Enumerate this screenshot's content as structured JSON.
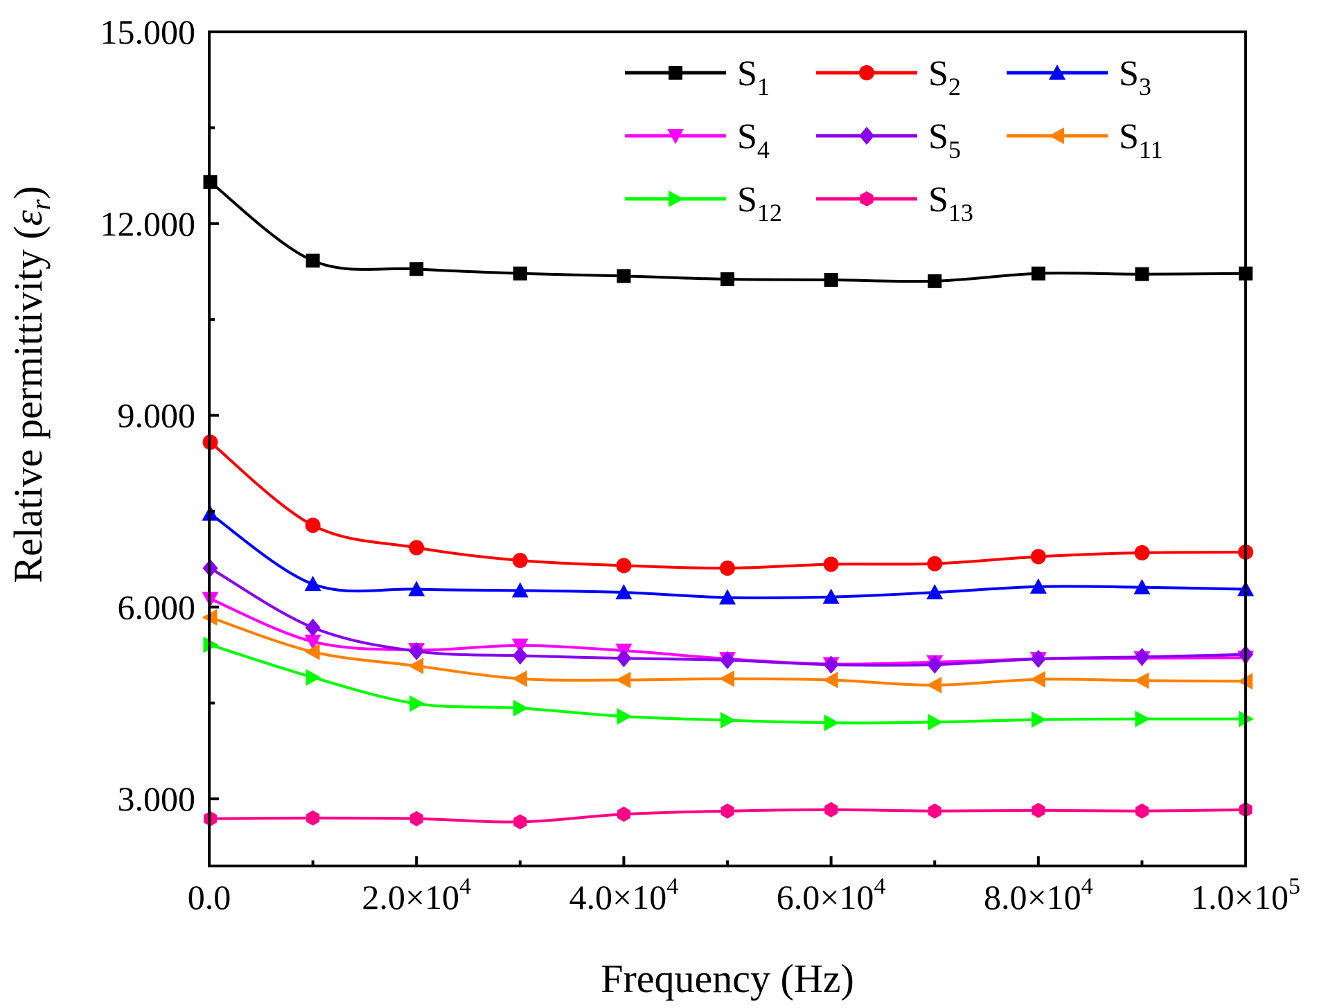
{
  "chart_data": {
    "type": "line",
    "title": "",
    "xlabel": "Frequency (Hz)",
    "ylabel_main": "Relative permittivity (",
    "ylabel_symbol": "ε",
    "ylabel_sub": "r",
    "ylabel_close": ")",
    "xlim": [
      0,
      100000
    ],
    "ylim": [
      1950,
      15000
    ],
    "x_ticks": [
      {
        "value": 0,
        "mantissa": "0.0",
        "exp": ""
      },
      {
        "value": 20000,
        "mantissa": "2.0×10",
        "exp": "4"
      },
      {
        "value": 40000,
        "mantissa": "4.0×10",
        "exp": "4"
      },
      {
        "value": 60000,
        "mantissa": "6.0×10",
        "exp": "4"
      },
      {
        "value": 80000,
        "mantissa": "8.0×10",
        "exp": "4"
      },
      {
        "value": 100000,
        "mantissa": "1.0×10",
        "exp": "5"
      }
    ],
    "y_ticks": [
      {
        "value": 3000,
        "label": "3.000"
      },
      {
        "value": 6000,
        "label": "6.000"
      },
      {
        "value": 9000,
        "label": "9.000"
      },
      {
        "value": 12000,
        "label": "12.000"
      },
      {
        "value": 15000,
        "label": "15.000"
      }
    ],
    "legend_position": "top-right",
    "x": [
      100,
      10000,
      20000,
      30000,
      40000,
      50000,
      60000,
      70000,
      80000,
      90000,
      100000
    ],
    "series": [
      {
        "name": "S",
        "sub": "1",
        "color": "#000000",
        "marker": "square",
        "values": [
          12650,
          11420,
          11290,
          11220,
          11180,
          11130,
          11120,
          11100,
          11220,
          11210,
          11220
        ]
      },
      {
        "name": "S",
        "sub": "2",
        "color": "#ff0000",
        "marker": "circle",
        "values": [
          8580,
          7280,
          6930,
          6730,
          6650,
          6610,
          6670,
          6680,
          6790,
          6850,
          6860
        ]
      },
      {
        "name": "S",
        "sub": "3",
        "color": "#0000ff",
        "marker": "triangle-up",
        "values": [
          7460,
          6360,
          6280,
          6260,
          6230,
          6150,
          6160,
          6230,
          6320,
          6310,
          6280
        ]
      },
      {
        "name": "S",
        "sub": "4",
        "color": "#ff00ff",
        "marker": "triangle-down",
        "values": [
          6130,
          5460,
          5330,
          5400,
          5320,
          5190,
          5110,
          5140,
          5190,
          5200,
          5210
        ]
      },
      {
        "name": "S",
        "sub": "5",
        "color": "#8800ee",
        "marker": "diamond",
        "values": [
          6610,
          5680,
          5310,
          5240,
          5200,
          5170,
          5100,
          5100,
          5190,
          5220,
          5260
        ]
      },
      {
        "name": "S",
        "sub": "11",
        "color": "#ff8000",
        "marker": "triangle-left",
        "values": [
          5840,
          5300,
          5080,
          4880,
          4860,
          4880,
          4860,
          4780,
          4870,
          4850,
          4840
        ]
      },
      {
        "name": "S",
        "sub": "12",
        "color": "#00ff00",
        "marker": "triangle-right",
        "values": [
          5410,
          4900,
          4490,
          4420,
          4290,
          4230,
          4190,
          4200,
          4240,
          4250,
          4250
        ]
      },
      {
        "name": "S",
        "sub": "13",
        "color": "#ff0088",
        "marker": "hexagon",
        "values": [
          2690,
          2700,
          2690,
          2640,
          2760,
          2810,
          2830,
          2810,
          2820,
          2810,
          2830
        ]
      }
    ]
  }
}
